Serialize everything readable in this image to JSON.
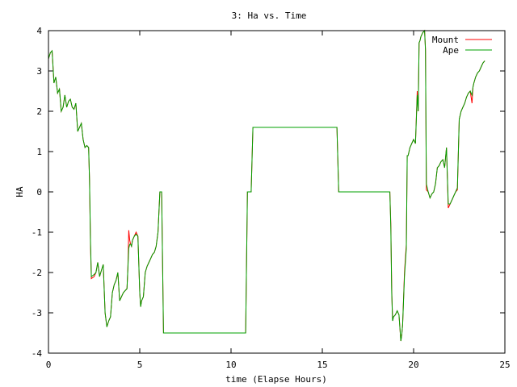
{
  "chart_data": {
    "type": "line",
    "title": "3: Ha vs. Time",
    "xlabel": "time (Elapse Hours)",
    "ylabel": "HA",
    "xlim": [
      0,
      25
    ],
    "ylim": [
      -4,
      4
    ],
    "xticks": [
      0,
      5,
      10,
      15,
      20,
      25
    ],
    "yticks": [
      -4,
      -3,
      -2,
      -1,
      0,
      1,
      2,
      3,
      4
    ],
    "grid": false,
    "legend_position": "top-right",
    "series": [
      {
        "name": "Mount",
        "color": "#ff0000",
        "x": [
          0.0,
          0.1,
          0.2,
          0.3,
          0.4,
          0.5,
          0.6,
          0.7,
          0.8,
          0.9,
          1.0,
          1.1,
          1.2,
          1.3,
          1.4,
          1.5,
          1.6,
          1.7,
          1.8,
          1.9,
          2.0,
          2.1,
          2.2,
          2.25,
          2.3,
          2.35,
          2.5,
          2.6,
          2.7,
          2.8,
          2.9,
          3.0,
          3.1,
          3.2,
          3.3,
          3.4,
          3.5,
          3.6,
          3.7,
          3.8,
          3.9,
          4.0,
          4.1,
          4.2,
          4.3,
          4.35,
          4.4,
          4.45,
          4.5,
          4.55,
          4.6,
          4.7,
          4.8,
          4.9,
          5.0,
          5.05,
          5.1,
          5.2,
          5.3,
          5.4,
          5.5,
          5.6,
          5.7,
          5.8,
          5.9,
          6.0,
          6.1,
          6.2,
          6.3,
          10.8,
          10.9,
          11.1,
          11.2,
          15.8,
          15.9,
          18.7,
          18.75,
          18.8,
          18.85,
          18.9,
          19.0,
          19.1,
          19.2,
          19.3,
          19.35,
          19.4,
          19.5,
          19.6,
          19.65,
          19.7,
          19.8,
          19.9,
          20.0,
          20.1,
          20.2,
          20.25,
          20.3,
          20.35,
          20.4,
          20.5,
          20.6,
          20.65,
          20.7,
          20.8,
          20.9,
          21.0,
          21.1,
          21.2,
          21.3,
          21.4,
          21.5,
          21.6,
          21.7,
          21.8,
          21.85,
          21.9,
          22.0,
          22.1,
          22.2,
          22.3,
          22.4,
          22.5,
          22.6,
          22.7,
          22.8,
          22.9,
          23.0,
          23.1,
          23.2,
          23.25,
          23.3,
          23.4,
          23.5,
          23.6,
          23.7,
          23.8,
          23.9
        ],
        "y": [
          3.3,
          3.45,
          3.5,
          2.7,
          2.85,
          2.45,
          2.55,
          2.0,
          2.1,
          2.4,
          2.1,
          2.25,
          2.3,
          2.1,
          2.05,
          2.2,
          1.5,
          1.6,
          1.7,
          1.3,
          1.1,
          1.15,
          1.1,
          0.3,
          -1.3,
          -2.15,
          -2.1,
          -2.0,
          -1.75,
          -2.1,
          -1.95,
          -1.8,
          -3.0,
          -3.35,
          -3.2,
          -3.1,
          -2.5,
          -2.3,
          -2.2,
          -2.0,
          -2.7,
          -2.6,
          -2.5,
          -2.45,
          -2.4,
          -1.9,
          -0.95,
          -1.2,
          -1.3,
          -1.35,
          -1.2,
          -1.1,
          -1.0,
          -1.1,
          -2.5,
          -2.85,
          -2.7,
          -2.6,
          -2.0,
          -1.85,
          -1.75,
          -1.65,
          -1.55,
          -1.5,
          -1.35,
          -1.0,
          0.0,
          0.0,
          -3.5,
          -3.5,
          0.0,
          0.0,
          1.6,
          1.6,
          0.0,
          0.0,
          -0.8,
          -2.4,
          -3.2,
          -3.1,
          -3.05,
          -2.95,
          -3.05,
          -3.7,
          -3.55,
          -3.3,
          -2.0,
          -1.3,
          0.9,
          0.9,
          1.1,
          1.2,
          1.3,
          1.2,
          2.5,
          2.0,
          3.7,
          3.75,
          3.85,
          3.95,
          4.0,
          3.55,
          0.05,
          0.0,
          -0.15,
          -0.05,
          0.0,
          0.2,
          0.6,
          0.65,
          0.75,
          0.8,
          0.6,
          1.1,
          0.35,
          -0.4,
          -0.3,
          -0.2,
          -0.1,
          0.0,
          0.05,
          1.8,
          2.0,
          2.1,
          2.2,
          2.35,
          2.45,
          2.5,
          2.2,
          2.6,
          2.7,
          2.85,
          2.95,
          3.0,
          3.1,
          3.2,
          3.25
        ],
        "width": 1
      },
      {
        "name": "Ape",
        "color": "#00a000",
        "x": [
          0.0,
          0.1,
          0.2,
          0.3,
          0.4,
          0.5,
          0.6,
          0.7,
          0.8,
          0.9,
          1.0,
          1.1,
          1.2,
          1.3,
          1.4,
          1.5,
          1.6,
          1.7,
          1.8,
          1.9,
          2.0,
          2.1,
          2.2,
          2.25,
          2.3,
          2.35,
          2.5,
          2.6,
          2.7,
          2.8,
          2.9,
          3.0,
          3.1,
          3.2,
          3.3,
          3.4,
          3.5,
          3.6,
          3.7,
          3.8,
          3.9,
          4.0,
          4.1,
          4.2,
          4.3,
          4.35,
          4.4,
          4.45,
          4.5,
          4.55,
          4.6,
          4.7,
          4.8,
          4.9,
          5.0,
          5.05,
          5.1,
          5.2,
          5.3,
          5.4,
          5.5,
          5.6,
          5.7,
          5.8,
          5.9,
          6.0,
          6.1,
          6.2,
          6.3,
          10.8,
          10.9,
          11.1,
          11.2,
          15.8,
          15.9,
          18.7,
          18.75,
          18.8,
          18.85,
          18.9,
          19.0,
          19.1,
          19.2,
          19.3,
          19.35,
          19.4,
          19.5,
          19.6,
          19.65,
          19.7,
          19.8,
          19.9,
          20.0,
          20.1,
          20.2,
          20.25,
          20.3,
          20.35,
          20.4,
          20.5,
          20.6,
          20.65,
          20.7,
          20.8,
          20.9,
          21.0,
          21.1,
          21.2,
          21.3,
          21.4,
          21.5,
          21.6,
          21.7,
          21.8,
          21.85,
          21.9,
          22.0,
          22.1,
          22.2,
          22.3,
          22.4,
          22.5,
          22.6,
          22.7,
          22.8,
          22.9,
          23.0,
          23.1,
          23.2,
          23.25,
          23.3,
          23.4,
          23.5,
          23.6,
          23.7,
          23.8,
          23.9
        ],
        "y": [
          3.3,
          3.45,
          3.5,
          2.7,
          2.85,
          2.45,
          2.55,
          2.0,
          2.1,
          2.4,
          2.1,
          2.25,
          2.3,
          2.1,
          2.05,
          2.2,
          1.5,
          1.6,
          1.7,
          1.3,
          1.1,
          1.15,
          1.1,
          0.3,
          -1.2,
          -2.1,
          -2.05,
          -2.0,
          -1.75,
          -2.1,
          -1.95,
          -1.8,
          -3.0,
          -3.35,
          -3.2,
          -3.1,
          -2.5,
          -2.3,
          -2.2,
          -2.0,
          -2.7,
          -2.6,
          -2.5,
          -2.45,
          -2.4,
          -1.9,
          -1.4,
          -1.3,
          -1.3,
          -1.35,
          -1.2,
          -1.1,
          -1.05,
          -1.1,
          -2.5,
          -2.85,
          -2.7,
          -2.6,
          -2.0,
          -1.85,
          -1.75,
          -1.65,
          -1.55,
          -1.5,
          -1.35,
          -1.0,
          0.0,
          0.0,
          -3.5,
          -3.5,
          0.0,
          0.0,
          1.6,
          1.6,
          0.0,
          0.0,
          -0.9,
          -2.5,
          -3.2,
          -3.1,
          -3.05,
          -2.95,
          -3.05,
          -3.7,
          -3.55,
          -3.3,
          -2.1,
          -1.4,
          0.9,
          0.9,
          1.1,
          1.2,
          1.3,
          1.2,
          2.4,
          2.0,
          3.7,
          3.75,
          3.85,
          3.95,
          4.0,
          3.5,
          0.2,
          0.0,
          -0.15,
          -0.05,
          0.0,
          0.2,
          0.6,
          0.65,
          0.75,
          0.8,
          0.6,
          1.1,
          0.4,
          -0.3,
          -0.3,
          -0.2,
          -0.1,
          0.0,
          0.1,
          1.8,
          2.0,
          2.1,
          2.2,
          2.35,
          2.45,
          2.5,
          2.4,
          2.6,
          2.7,
          2.85,
          2.95,
          3.0,
          3.1,
          3.2,
          3.25
        ],
        "width": 1
      }
    ]
  }
}
